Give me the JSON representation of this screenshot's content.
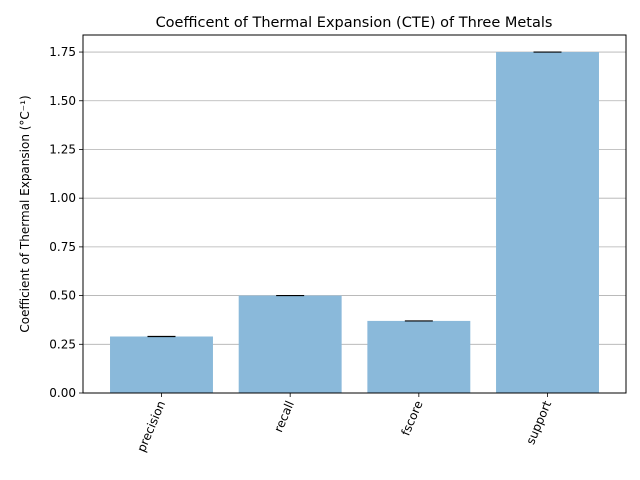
{
  "chart_data": {
    "type": "bar",
    "title": "Coefficent of Thermal Expansion (CTE) of Three Metals",
    "xlabel": "",
    "ylabel": "Coefficient of Thermal Expansion (°C⁻¹)",
    "categories": [
      "precision",
      "recall",
      "fscore",
      "support"
    ],
    "values": [
      0.29,
      0.5,
      0.37,
      1.75
    ],
    "error": [
      0,
      0,
      0,
      0
    ],
    "ylim": [
      0,
      1.8375
    ],
    "yticks": [
      "0.00",
      "0.25",
      "0.50",
      "0.75",
      "1.00",
      "1.25",
      "1.50",
      "1.75"
    ],
    "grid": "y-axis",
    "bar_color": "#8ab9da",
    "xtick_rotation": -67
  }
}
